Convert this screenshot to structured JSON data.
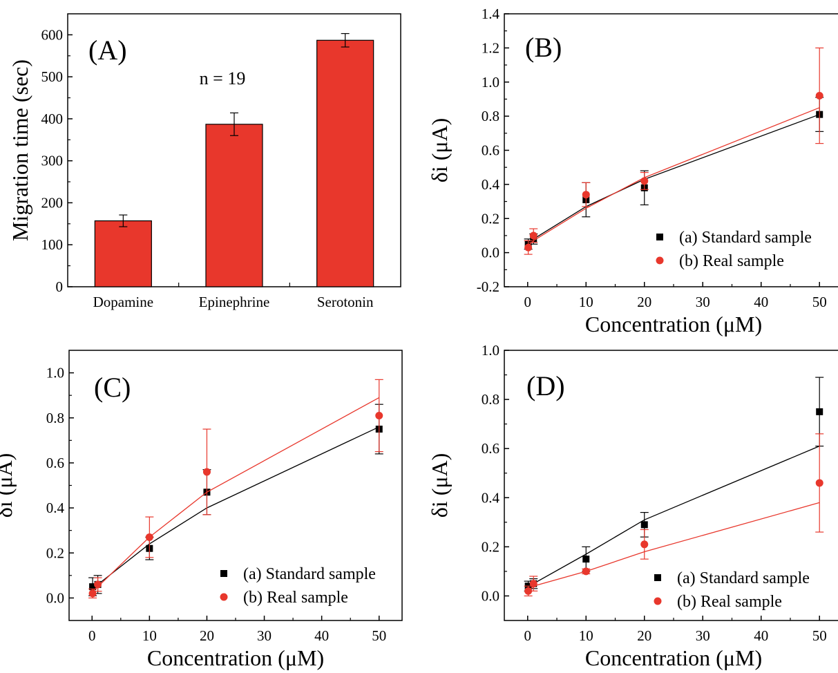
{
  "colors": {
    "standard": "#000000",
    "real": "#e8372c",
    "bar_fill": "#e8372c",
    "bar_edge": "#000000"
  },
  "chart_data": [
    {
      "type": "bar",
      "panel_label": "(A)",
      "annotation": "n = 19",
      "ylabel": "Migration time (sec)",
      "xlabel": "",
      "categories": [
        "Dopamine",
        "Epinephrine",
        "Serotonin"
      ],
      "values": [
        157,
        387,
        587
      ],
      "errors": [
        14,
        27,
        16
      ],
      "ylim": [
        0,
        650
      ],
      "yticks": [
        "0",
        "100",
        "200",
        "300",
        "400",
        "500",
        "600"
      ]
    },
    {
      "type": "scatter",
      "panel_label": "(B)",
      "xlabel": "Concentration (μM)",
      "ylabel": "δi (μA)",
      "xlim": [
        -4,
        54
      ],
      "ylim": [
        -0.2,
        1.4
      ],
      "xticks": [
        "0",
        "10",
        "20",
        "30",
        "40",
        "50"
      ],
      "yticks": [
        "-0.2",
        "0.0",
        "0.2",
        "0.4",
        "0.6",
        "0.8",
        "1.0",
        "1.2",
        "1.4"
      ],
      "x": [
        0.1,
        1,
        10,
        20,
        50
      ],
      "series": [
        {
          "name": "(a) Standard sample",
          "marker": "square",
          "y": [
            0.05,
            0.08,
            0.31,
            0.38,
            0.81
          ],
          "err": [
            0.03,
            0.03,
            0.1,
            0.1,
            0.1
          ],
          "fit": [
            0.06,
            0.08,
            0.27,
            0.43,
            0.81
          ]
        },
        {
          "name": "(b) Real sample",
          "marker": "circle",
          "y": [
            0.03,
            0.1,
            0.34,
            0.42,
            0.92
          ],
          "err": [
            0.04,
            0.04,
            0.07,
            0.05,
            0.28
          ],
          "fit": [
            0.04,
            0.07,
            0.26,
            0.44,
            0.85
          ]
        }
      ]
    },
    {
      "type": "scatter",
      "panel_label": "(C)",
      "xlabel": "Concentration (μM)",
      "ylabel": "δi (μA)",
      "xlim": [
        -4,
        54
      ],
      "ylim": [
        -0.1,
        1.1
      ],
      "xticks": [
        "0",
        "10",
        "20",
        "30",
        "40",
        "50"
      ],
      "yticks": [
        "0.0",
        "0.2",
        "0.4",
        "0.6",
        "0.8",
        "1.0"
      ],
      "x": [
        0.1,
        1,
        10,
        20,
        50
      ],
      "series": [
        {
          "name": "(a) Standard sample",
          "marker": "square",
          "y": [
            0.05,
            0.06,
            0.22,
            0.47,
            0.75
          ],
          "err": [
            0.04,
            0.04,
            0.05,
            0.1,
            0.11
          ],
          "fit": [
            0.03,
            0.06,
            0.24,
            0.4,
            0.76
          ]
        },
        {
          "name": "(b) Real sample",
          "marker": "circle",
          "y": [
            0.02,
            0.06,
            0.27,
            0.56,
            0.81
          ],
          "err": [
            0.02,
            0.03,
            0.09,
            0.19,
            0.16
          ],
          "fit": [
            0.03,
            0.05,
            0.27,
            0.47,
            0.89
          ]
        }
      ]
    },
    {
      "type": "scatter",
      "panel_label": "(D)",
      "xlabel": "Concentration (μM)",
      "ylabel": "δi (μA)",
      "xlim": [
        -4,
        54
      ],
      "ylim": [
        -0.1,
        1.0
      ],
      "xticks": [
        "0",
        "10",
        "20",
        "30",
        "40",
        "50"
      ],
      "yticks": [
        "0.0",
        "0.2",
        "0.4",
        "0.6",
        "0.8",
        "1.0"
      ],
      "x": [
        0.1,
        1,
        10,
        20,
        50
      ],
      "series": [
        {
          "name": "(a) Standard sample",
          "marker": "square",
          "y": [
            0.04,
            0.05,
            0.15,
            0.29,
            0.75
          ],
          "err": [
            0.02,
            0.02,
            0.05,
            0.05,
            0.14
          ],
          "fit": [
            0.03,
            0.05,
            0.17,
            0.31,
            0.61
          ]
        },
        {
          "name": "(b) Real sample",
          "marker": "circle",
          "y": [
            0.02,
            0.05,
            0.1,
            0.21,
            0.46
          ],
          "err": [
            0.02,
            0.03,
            0.01,
            0.06,
            0.2
          ],
          "fit": [
            0.02,
            0.04,
            0.1,
            0.18,
            0.38
          ]
        }
      ]
    }
  ]
}
